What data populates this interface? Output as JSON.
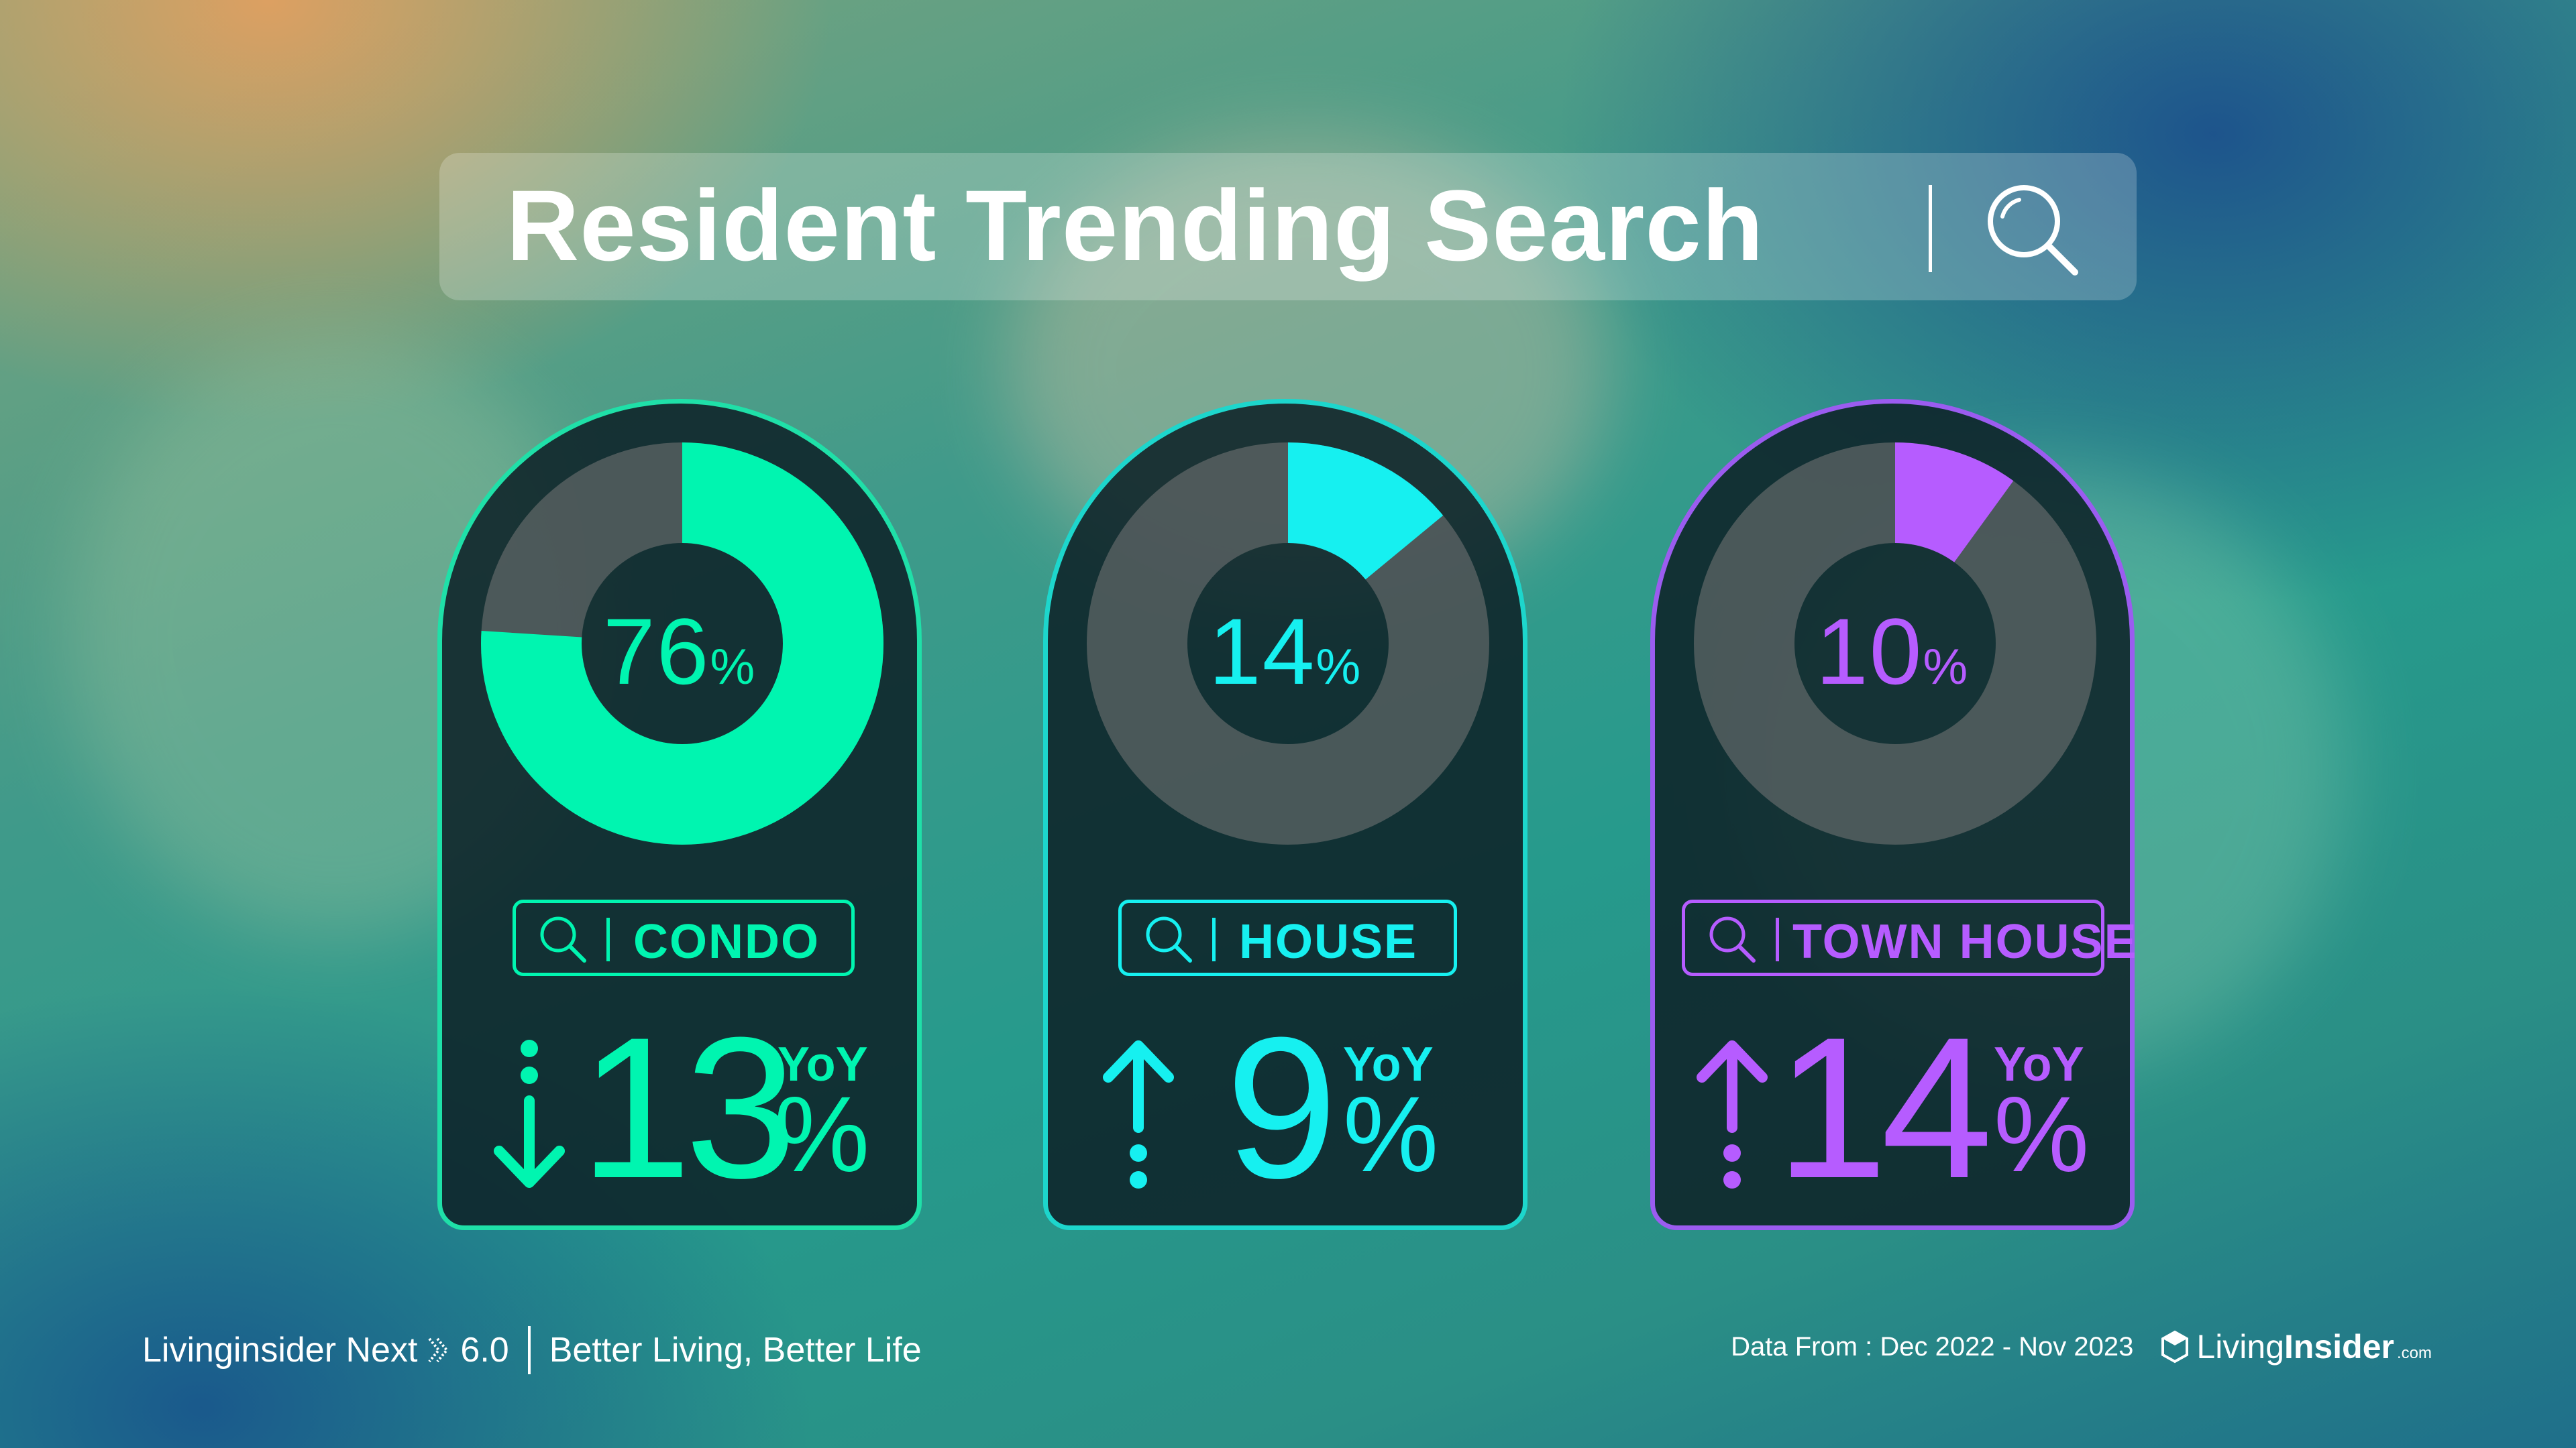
{
  "title": "Resident Trending Search",
  "accent_colors": {
    "condo": "#00f5b0",
    "house": "#16f0f0",
    "town_house": "#b65cff"
  },
  "chart_data": [
    {
      "type": "pie",
      "title": "CONDO",
      "values": [
        76,
        24
      ],
      "label": "76",
      "unit": "%",
      "yoy_change": -13,
      "yoy_label": "YoY",
      "yoy_unit": "%",
      "direction": "down",
      "color": "#00f5b0"
    },
    {
      "type": "pie",
      "title": "HOUSE",
      "values": [
        14,
        86
      ],
      "label": "14",
      "unit": "%",
      "yoy_change": 9,
      "yoy_label": "YoY",
      "yoy_unit": "%",
      "direction": "up",
      "color": "#16f0f0"
    },
    {
      "type": "pie",
      "title": "TOWN HOUSE",
      "values": [
        10,
        90
      ],
      "label": "10",
      "unit": "%",
      "yoy_change": 14,
      "yoy_label": "YoY",
      "yoy_unit": "%",
      "direction": "up",
      "color": "#b65cff"
    }
  ],
  "cards": [
    {
      "category": "CONDO",
      "percent": "76",
      "percent_sign": "%",
      "change": "13",
      "yoy": "YoY",
      "change_sign": "%",
      "icon": "search-icon",
      "arrow": "arrow-down-icon"
    },
    {
      "category": "HOUSE",
      "percent": "14",
      "percent_sign": "%",
      "change": "9",
      "yoy": "YoY",
      "change_sign": "%",
      "icon": "search-icon",
      "arrow": "arrow-up-icon"
    },
    {
      "category": "TOWN HOUSE",
      "percent": "10",
      "percent_sign": "%",
      "change": "14",
      "yoy": "YoY",
      "change_sign": "%",
      "icon": "search-icon",
      "arrow": "arrow-up-icon"
    }
  ],
  "footer": {
    "brand_line": "Livinginsider Next",
    "version": "6.0",
    "tagline": "Better Living, Better Life",
    "data_from": "Data From : Dec 2022 - Nov 2023",
    "logo_living": "Living",
    "logo_insider": "Insider",
    "logo_com": ".com"
  }
}
